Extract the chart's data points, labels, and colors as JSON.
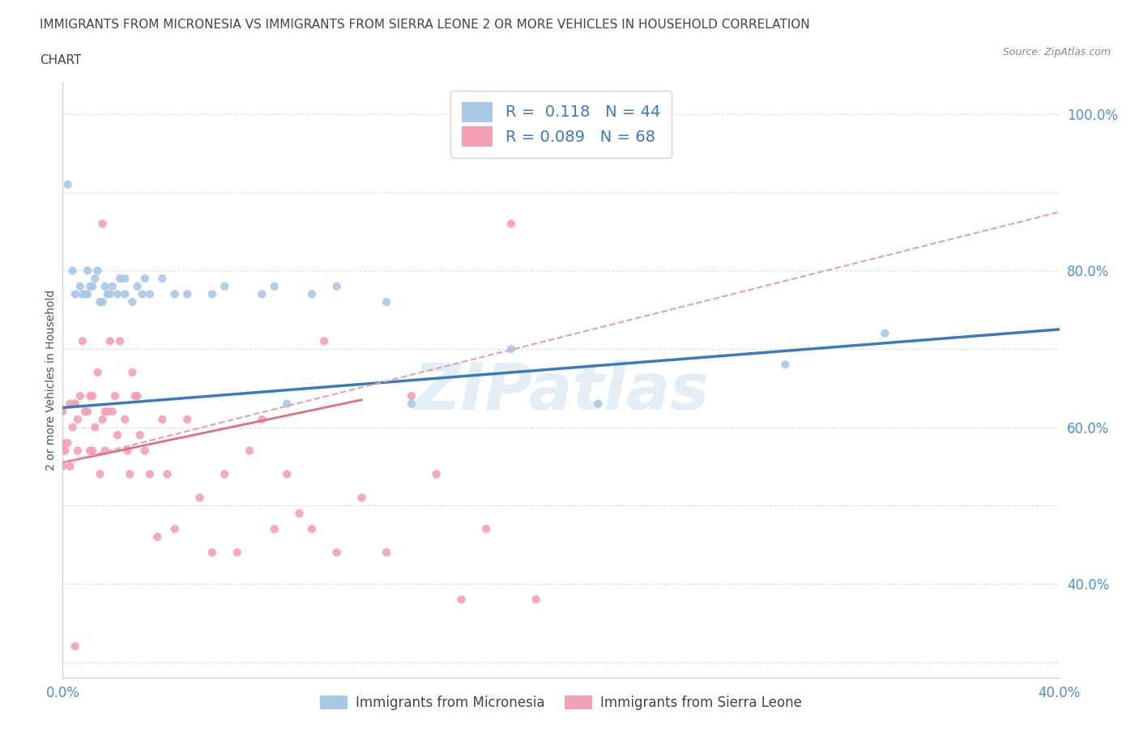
{
  "title_line1": "IMMIGRANTS FROM MICRONESIA VS IMMIGRANTS FROM SIERRA LEONE 2 OR MORE VEHICLES IN HOUSEHOLD CORRELATION",
  "title_line2": "CHART",
  "source_text": "Source: ZipAtlas.com",
  "ylabel": "2 or more Vehicles in Household",
  "xlim": [
    0.0,
    0.4
  ],
  "ylim": [
    0.28,
    1.04
  ],
  "xticks": [
    0.0,
    0.1,
    0.2,
    0.3,
    0.4
  ],
  "xticklabels": [
    "0.0%",
    "",
    "",
    "",
    "40.0%"
  ],
  "yticks_right": [
    1.0,
    0.8,
    0.6,
    0.4
  ],
  "ytick_right_labels": [
    "100.0%",
    "80.0%",
    "60.0%",
    "40.0%"
  ],
  "r_micronesia": 0.118,
  "n_micronesia": 44,
  "r_sierra_leone": 0.089,
  "n_sierra_leone": 68,
  "color_micronesia": "#a8c8e8",
  "color_sierra_leone": "#f4a0b5",
  "trendline_micronesia_color": "#3a7abf",
  "trendline_sierra_leone_color": "#e07080",
  "trendline_dashed_color": "#e8a0b0",
  "scatter_micronesia_x": [
    0.002,
    0.004,
    0.005,
    0.007,
    0.008,
    0.009,
    0.01,
    0.01,
    0.011,
    0.012,
    0.013,
    0.014,
    0.015,
    0.016,
    0.017,
    0.018,
    0.019,
    0.02,
    0.022,
    0.023,
    0.025,
    0.025,
    0.028,
    0.03,
    0.032,
    0.033,
    0.035,
    0.04,
    0.045,
    0.05,
    0.06,
    0.065,
    0.08,
    0.085,
    0.09,
    0.1,
    0.11,
    0.13,
    0.14,
    0.18,
    0.215,
    0.29,
    0.33,
    0.005
  ],
  "scatter_micronesia_y": [
    0.91,
    0.8,
    0.77,
    0.78,
    0.77,
    0.77,
    0.8,
    0.77,
    0.78,
    0.78,
    0.79,
    0.8,
    0.76,
    0.76,
    0.78,
    0.77,
    0.77,
    0.78,
    0.77,
    0.79,
    0.77,
    0.79,
    0.76,
    0.78,
    0.77,
    0.79,
    0.77,
    0.79,
    0.77,
    0.77,
    0.77,
    0.78,
    0.77,
    0.78,
    0.63,
    0.77,
    0.78,
    0.76,
    0.63,
    0.7,
    0.63,
    0.68,
    0.72,
    0.63
  ],
  "scatter_sierra_leone_x": [
    0.0,
    0.0,
    0.0,
    0.0,
    0.001,
    0.002,
    0.003,
    0.003,
    0.004,
    0.005,
    0.006,
    0.006,
    0.007,
    0.008,
    0.009,
    0.01,
    0.011,
    0.011,
    0.012,
    0.012,
    0.013,
    0.014,
    0.015,
    0.016,
    0.016,
    0.017,
    0.017,
    0.018,
    0.019,
    0.02,
    0.021,
    0.022,
    0.023,
    0.025,
    0.026,
    0.027,
    0.028,
    0.029,
    0.03,
    0.031,
    0.033,
    0.035,
    0.038,
    0.04,
    0.042,
    0.045,
    0.05,
    0.055,
    0.06,
    0.065,
    0.07,
    0.075,
    0.08,
    0.085,
    0.09,
    0.095,
    0.1,
    0.105,
    0.11,
    0.12,
    0.13,
    0.14,
    0.15,
    0.16,
    0.17,
    0.18,
    0.19,
    0.005
  ],
  "scatter_sierra_leone_y": [
    0.62,
    0.57,
    0.55,
    0.58,
    0.57,
    0.58,
    0.55,
    0.63,
    0.6,
    0.63,
    0.57,
    0.61,
    0.64,
    0.71,
    0.62,
    0.62,
    0.57,
    0.64,
    0.64,
    0.57,
    0.6,
    0.67,
    0.54,
    0.61,
    0.86,
    0.62,
    0.57,
    0.62,
    0.71,
    0.62,
    0.64,
    0.59,
    0.71,
    0.61,
    0.57,
    0.54,
    0.67,
    0.64,
    0.64,
    0.59,
    0.57,
    0.54,
    0.46,
    0.61,
    0.54,
    0.47,
    0.61,
    0.51,
    0.44,
    0.54,
    0.44,
    0.57,
    0.61,
    0.47,
    0.54,
    0.49,
    0.47,
    0.71,
    0.44,
    0.51,
    0.44,
    0.64,
    0.54,
    0.38,
    0.47,
    0.86,
    0.38,
    0.32
  ],
  "trendline_micronesia_x0": 0.0,
  "trendline_micronesia_x1": 0.4,
  "trendline_micronesia_y0": 0.625,
  "trendline_micronesia_y1": 0.725,
  "trendline_sl_solid_x0": 0.0,
  "trendline_sl_solid_x1": 0.12,
  "trendline_sl_solid_y0": 0.555,
  "trendline_sl_solid_y1": 0.635,
  "trendline_sl_dashed_x0": 0.0,
  "trendline_sl_dashed_x1": 0.4,
  "trendline_sl_dashed_y0": 0.555,
  "trendline_sl_dashed_y1": 0.875,
  "watermark_text": "ZIPatlas",
  "background_color": "#ffffff",
  "tick_color": "#4a90d9",
  "grid_color": "#cccccc",
  "legend_r_color": "#3a7abf",
  "title_color": "#444444",
  "source_color": "#888888",
  "ylabel_color": "#555555"
}
